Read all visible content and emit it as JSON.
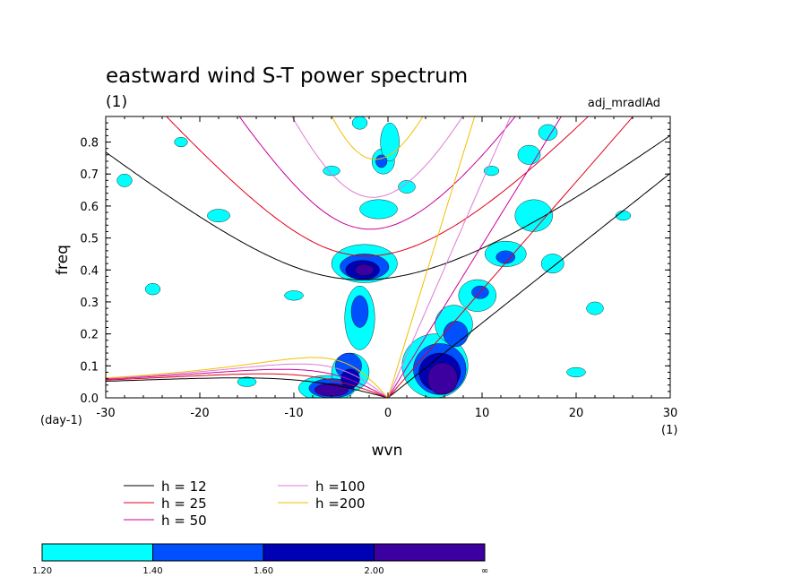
{
  "chart_data": {
    "type": "contour",
    "title": "eastward wind S-T power spectrum",
    "subtitle_left": "(1)",
    "subtitle_right": "adj_mradlAd",
    "xlabel": "wvn",
    "ylabel": "freq",
    "y_unit": "(day-1)",
    "x_unit": "(1)",
    "xlim": [
      -30,
      30
    ],
    "ylim": [
      0,
      0.88
    ],
    "x_ticks": [
      -30,
      -20,
      -10,
      0,
      10,
      20,
      30
    ],
    "y_ticks": [
      0.0,
      0.1,
      0.2,
      0.3,
      0.4,
      0.5,
      0.6,
      0.7,
      0.8
    ],
    "x_tick_labels": [
      "-30",
      "-20",
      "-10",
      "0",
      "10",
      "20",
      "30"
    ],
    "y_tick_labels": [
      "0.0",
      "0.1",
      "0.2",
      "0.3",
      "0.4",
      "0.5",
      "0.6",
      "0.7",
      "0.8"
    ],
    "legend": [
      {
        "label": "h = 12",
        "color": "#000000"
      },
      {
        "label": "h = 25",
        "color": "#e0001c"
      },
      {
        "label": "h = 50",
        "color": "#c8009a"
      },
      {
        "label": "h =100",
        "color": "#e07ad8"
      },
      {
        "label": "h =200",
        "color": "#f0c000"
      }
    ],
    "series": [
      {
        "name": "h = 12",
        "h": 12
      },
      {
        "name": "h = 25",
        "h": 25
      },
      {
        "name": "h = 50",
        "h": 50
      },
      {
        "name": "h =100",
        "h": 100
      },
      {
        "name": "h =200",
        "h": 200
      }
    ],
    "colorbar": {
      "colors": [
        "#00ffff",
        "#0050ff",
        "#0000b4",
        "#3c00a0"
      ],
      "labels": [
        "1.20",
        "1.40",
        "1.60",
        "2.00",
        "∞"
      ]
    },
    "regions": [
      {
        "level": 0,
        "x": -6.5,
        "y": 0.03,
        "rx": 3.0,
        "ry": 0.04
      },
      {
        "level": 1,
        "x": -6.0,
        "y": 0.03,
        "rx": 2.4,
        "ry": 0.03
      },
      {
        "level": 3,
        "x": -6.0,
        "y": 0.025,
        "rx": 1.8,
        "ry": 0.02
      },
      {
        "level": 0,
        "x": -4.0,
        "y": 0.08,
        "rx": 2.0,
        "ry": 0.06
      },
      {
        "level": 1,
        "x": -4.2,
        "y": 0.1,
        "rx": 1.4,
        "ry": 0.04
      },
      {
        "level": 2,
        "x": -4.0,
        "y": 0.06,
        "rx": 1.0,
        "ry": 0.03
      },
      {
        "level": 0,
        "x": -3.0,
        "y": 0.25,
        "rx": 1.6,
        "ry": 0.1
      },
      {
        "level": 1,
        "x": -3.0,
        "y": 0.27,
        "rx": 0.9,
        "ry": 0.05
      },
      {
        "level": 0,
        "x": -2.5,
        "y": 0.42,
        "rx": 3.5,
        "ry": 0.06
      },
      {
        "level": 1,
        "x": -2.5,
        "y": 0.41,
        "rx": 2.6,
        "ry": 0.04
      },
      {
        "level": 2,
        "x": -2.7,
        "y": 0.4,
        "rx": 1.8,
        "ry": 0.03
      },
      {
        "level": 3,
        "x": -2.5,
        "y": 0.4,
        "rx": 1.0,
        "ry": 0.018
      },
      {
        "level": 0,
        "x": -0.5,
        "y": 0.74,
        "rx": 1.2,
        "ry": 0.04
      },
      {
        "level": 1,
        "x": -0.7,
        "y": 0.74,
        "rx": 0.6,
        "ry": 0.02
      },
      {
        "level": 0,
        "x": 0.2,
        "y": 0.8,
        "rx": 1.0,
        "ry": 0.06
      },
      {
        "level": 0,
        "x": -1.0,
        "y": 0.59,
        "rx": 2.0,
        "ry": 0.03
      },
      {
        "level": 0,
        "x": 5.0,
        "y": 0.1,
        "rx": 3.5,
        "ry": 0.1
      },
      {
        "level": 1,
        "x": 5.5,
        "y": 0.09,
        "rx": 2.8,
        "ry": 0.08
      },
      {
        "level": 2,
        "x": 5.5,
        "y": 0.08,
        "rx": 2.2,
        "ry": 0.06
      },
      {
        "level": 3,
        "x": 5.8,
        "y": 0.06,
        "rx": 1.6,
        "ry": 0.05
      },
      {
        "level": 0,
        "x": 7.0,
        "y": 0.23,
        "rx": 2.0,
        "ry": 0.06
      },
      {
        "level": 1,
        "x": 7.2,
        "y": 0.2,
        "rx": 1.3,
        "ry": 0.04
      },
      {
        "level": 0,
        "x": 9.5,
        "y": 0.32,
        "rx": 2.0,
        "ry": 0.05
      },
      {
        "level": 1,
        "x": 9.8,
        "y": 0.33,
        "rx": 0.9,
        "ry": 0.02
      },
      {
        "level": 0,
        "x": 12.5,
        "y": 0.45,
        "rx": 2.2,
        "ry": 0.04
      },
      {
        "level": 1,
        "x": 12.5,
        "y": 0.44,
        "rx": 1.0,
        "ry": 0.02
      },
      {
        "level": 0,
        "x": 15.5,
        "y": 0.57,
        "rx": 2.0,
        "ry": 0.05
      },
      {
        "level": 0,
        "x": 17.5,
        "y": 0.42,
        "rx": 1.2,
        "ry": 0.03
      },
      {
        "level": 0,
        "x": 15.0,
        "y": 0.76,
        "rx": 1.2,
        "ry": 0.03
      },
      {
        "level": 0,
        "x": 17.0,
        "y": 0.83,
        "rx": 1.0,
        "ry": 0.025
      },
      {
        "level": 0,
        "x": -18.0,
        "y": 0.57,
        "rx": 1.2,
        "ry": 0.02
      },
      {
        "level": 0,
        "x": -25.0,
        "y": 0.34,
        "rx": 0.8,
        "ry": 0.018
      },
      {
        "level": 0,
        "x": -10.0,
        "y": 0.32,
        "rx": 1.0,
        "ry": 0.015
      },
      {
        "level": 0,
        "x": -6.0,
        "y": 0.71,
        "rx": 0.9,
        "ry": 0.015
      },
      {
        "level": 0,
        "x": 2.0,
        "y": 0.66,
        "rx": 0.9,
        "ry": 0.02
      },
      {
        "level": 0,
        "x": -28.0,
        "y": 0.68,
        "rx": 0.8,
        "ry": 0.02
      },
      {
        "level": 0,
        "x": 22.0,
        "y": 0.28,
        "rx": 0.9,
        "ry": 0.02
      },
      {
        "level": 0,
        "x": 25.0,
        "y": 0.57,
        "rx": 0.8,
        "ry": 0.015
      },
      {
        "level": 0,
        "x": -15.0,
        "y": 0.05,
        "rx": 1.0,
        "ry": 0.015
      },
      {
        "level": 0,
        "x": 20.0,
        "y": 0.08,
        "rx": 1.0,
        "ry": 0.015
      },
      {
        "level": 0,
        "x": -22.0,
        "y": 0.8,
        "rx": 0.7,
        "ry": 0.015
      },
      {
        "level": 0,
        "x": 11.0,
        "y": 0.71,
        "rx": 0.8,
        "ry": 0.015
      },
      {
        "level": 0,
        "x": -3.0,
        "y": 0.86,
        "rx": 0.8,
        "ry": 0.02
      }
    ]
  }
}
